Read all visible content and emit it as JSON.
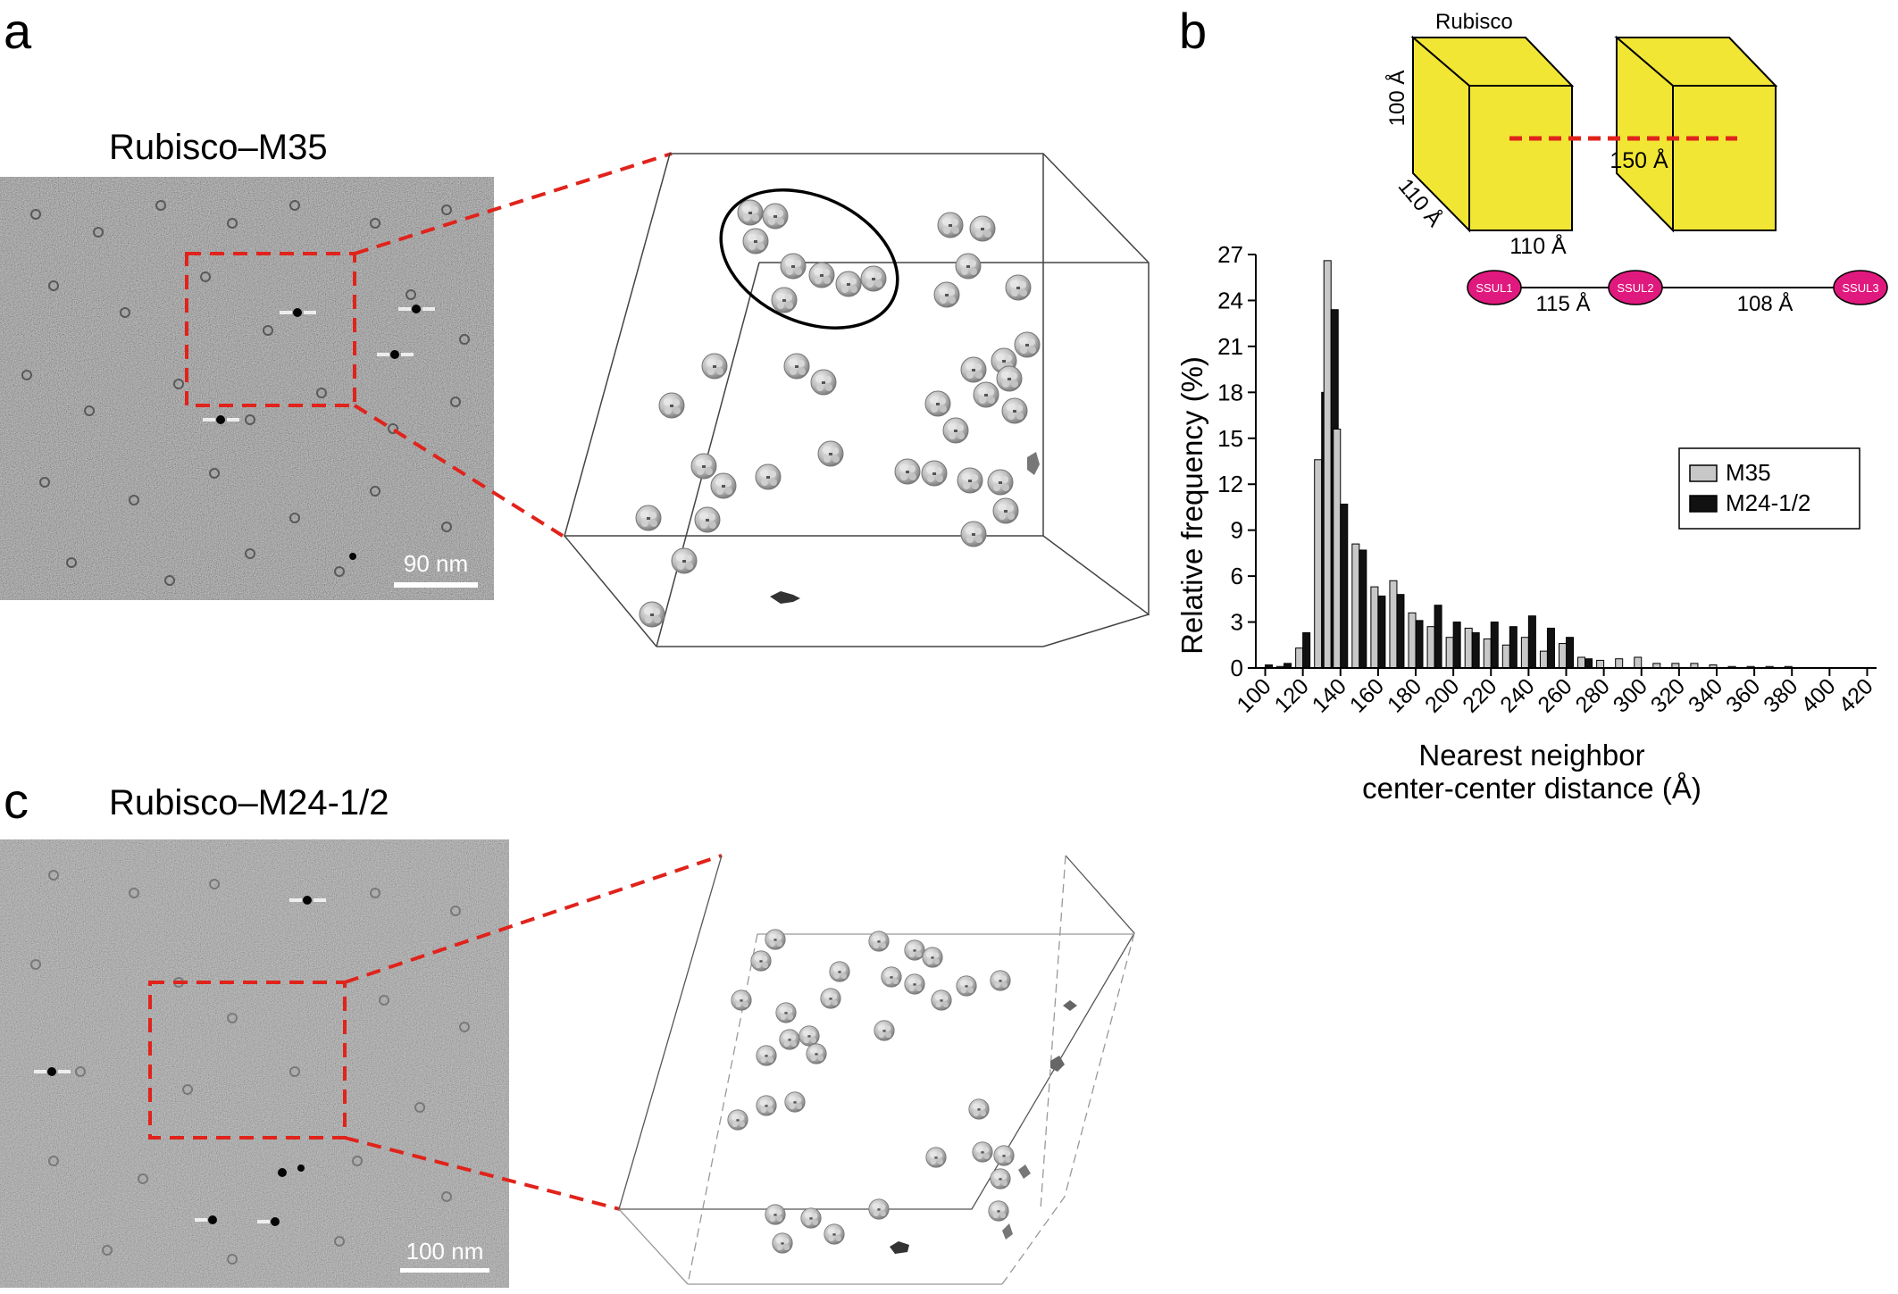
{
  "panels": {
    "a": {
      "letter": "a",
      "title": "Rubisco–M35",
      "scale_bar": "90 nm"
    },
    "b": {
      "letter": "b",
      "schematic": {
        "label": "Rubisco",
        "height": "100 Å",
        "depth": "110 Å",
        "width": "110 Å",
        "spacing": "150 Å",
        "nodes": [
          "SSUL1",
          "SSUL2",
          "SSUL3"
        ],
        "linker1": "115 Å",
        "linker2": "108 Å"
      }
    },
    "c": {
      "letter": "c",
      "title": "Rubisco–M24-1/2",
      "scale_bar": "100 nm"
    }
  },
  "colors": {
    "m35": "#c8c8c8",
    "m24": "#111111",
    "box": "#f2e635",
    "ssul": "#e0197e",
    "dash": "#e0231b",
    "em": "#8a8a8a"
  },
  "chart_data": {
    "type": "bar",
    "title": "",
    "xlabel_line1": "Nearest neighbor",
    "xlabel_line2": "center-center distance (Å)",
    "ylabel": "Relative frequency (%)",
    "ylim": [
      0,
      27
    ],
    "yticks": [
      0,
      3,
      6,
      9,
      12,
      15,
      18,
      21,
      24,
      27
    ],
    "xlim": [
      95,
      425
    ],
    "xticks": [
      100,
      120,
      140,
      160,
      180,
      200,
      220,
      240,
      260,
      280,
      300,
      320,
      340,
      360,
      380,
      400,
      420
    ],
    "legend_position": "right",
    "x": [
      100,
      110,
      120,
      130,
      135,
      140,
      150,
      155,
      160,
      170,
      180,
      190,
      200,
      210,
      220,
      230,
      240,
      250,
      260,
      270,
      280,
      290,
      300,
      310,
      320,
      330,
      340,
      350,
      360,
      370,
      380,
      390,
      400,
      410,
      420
    ],
    "series": [
      {
        "name": "M35",
        "values": [
          0,
          0.1,
          1.3,
          13.6,
          26.6,
          15.6,
          8.1,
          0,
          5.3,
          5.7,
          3.6,
          2.7,
          2.0,
          2.6,
          1.9,
          1.5,
          2.0,
          1.1,
          1.6,
          0.7,
          0.5,
          0.6,
          0.7,
          0.3,
          0.3,
          0.3,
          0.2,
          0.1,
          0.1,
          0.1,
          0.1,
          0,
          0,
          0,
          0
        ]
      },
      {
        "name": "M24-1/2",
        "values": [
          0.2,
          0.3,
          2.3,
          18.0,
          23.4,
          10.7,
          7.7,
          0,
          4.7,
          4.8,
          3.1,
          4.1,
          3.0,
          2.3,
          3.0,
          2.7,
          3.4,
          2.6,
          2.0,
          0.6,
          0,
          0,
          0,
          0,
          0,
          0,
          0,
          0,
          0,
          0,
          0,
          0,
          0,
          0,
          0
        ]
      }
    ]
  }
}
